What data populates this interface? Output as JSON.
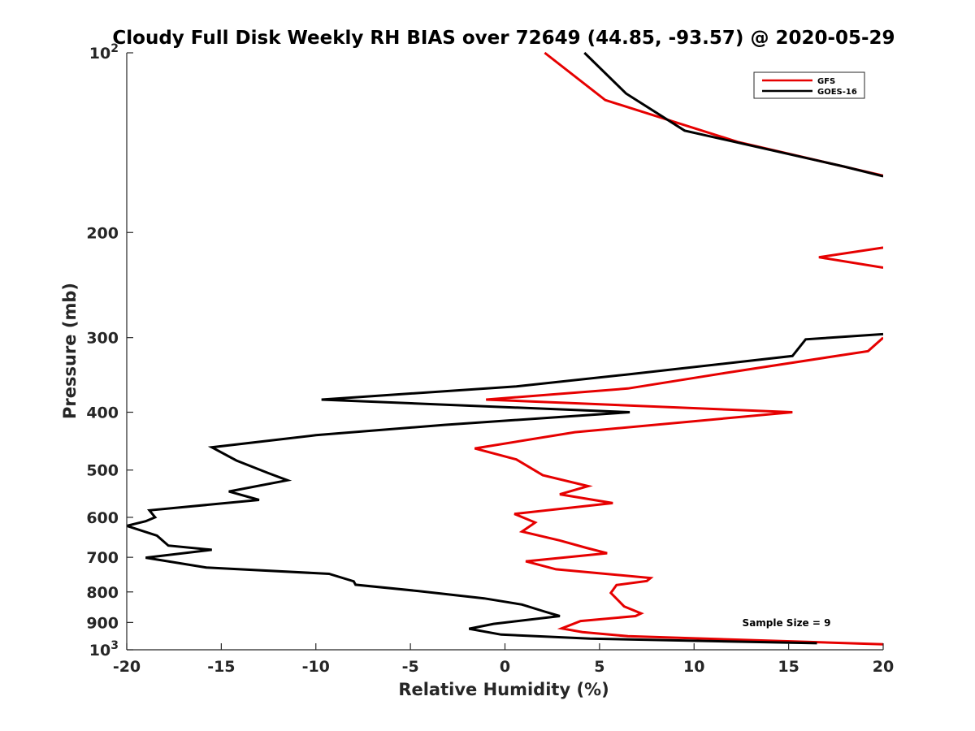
{
  "chart_data": {
    "type": "line",
    "title": "Cloudy Full Disk Weekly RH BIAS over 72649 (44.85, -93.57) @ 2020-05-29",
    "xlabel": "Relative Humidity (%)",
    "ylabel": "Pressure (mb)",
    "xlim": [
      -20,
      20
    ],
    "ylim": [
      100,
      1000
    ],
    "yscale": "log",
    "y_reversed": true,
    "x_ticks": [
      -20,
      -15,
      -10,
      -5,
      0,
      5,
      10,
      15,
      20
    ],
    "x_tick_labels": [
      "-20",
      "-15",
      "-10",
      "-5",
      "0",
      "5",
      "10",
      "15",
      "20"
    ],
    "y_ticks": [
      100,
      200,
      300,
      400,
      500,
      600,
      700,
      800,
      900,
      1000
    ],
    "y_tick_labels": [
      {
        "base": "10",
        "sup": "2"
      },
      {
        "base": "200",
        "sup": ""
      },
      {
        "base": "300",
        "sup": ""
      },
      {
        "base": "400",
        "sup": ""
      },
      {
        "base": "500",
        "sup": ""
      },
      {
        "base": "600",
        "sup": ""
      },
      {
        "base": "700",
        "sup": ""
      },
      {
        "base": "800",
        "sup": ""
      },
      {
        "base": "900",
        "sup": ""
      },
      {
        "base": "10",
        "sup": "3"
      }
    ],
    "grid": false,
    "legend_position": "top-right",
    "annotation": "Sample Size = 9",
    "series": [
      {
        "name": "GFS",
        "color": "#e60000",
        "points": [
          [
            2.1,
            100
          ],
          [
            5.3,
            120
          ],
          [
            12.3,
            141
          ],
          [
            20.5,
            162
          ],
          [
            null,
            null
          ],
          [
            20.0,
            212
          ],
          [
            16.6,
            220
          ],
          [
            20.0,
            229
          ],
          [
            null,
            null
          ],
          [
            20.0,
            300
          ],
          [
            19.2,
            316
          ],
          [
            11.6,
            344
          ],
          [
            6.5,
            365
          ],
          [
            -1.0,
            381
          ],
          [
            15.2,
            400
          ],
          [
            3.7,
            432
          ],
          [
            -1.6,
            460
          ],
          [
            0.6,
            480
          ],
          [
            2.0,
            510
          ],
          [
            4.4,
            532
          ],
          [
            2.9,
            549
          ],
          [
            5.7,
            568
          ],
          [
            0.5,
            592
          ],
          [
            1.6,
            612
          ],
          [
            0.9,
            634
          ],
          [
            2.9,
            656
          ],
          [
            4.3,
            675
          ],
          [
            5.4,
            689
          ],
          [
            1.1,
            711
          ],
          [
            2.7,
            733
          ],
          [
            7.7,
            758
          ],
          [
            7.5,
            767
          ],
          [
            5.9,
            779
          ],
          [
            5.6,
            803
          ],
          [
            6.0,
            827
          ],
          [
            6.3,
            846
          ],
          [
            7.2,
            869
          ],
          [
            6.9,
            878
          ],
          [
            4.0,
            895
          ],
          [
            3.0,
            921
          ],
          [
            4.1,
            934
          ],
          [
            6.5,
            949
          ],
          [
            20.0,
            979
          ]
        ]
      },
      {
        "name": "GOES-16",
        "color": "#000000",
        "points": [
          [
            4.2,
            100
          ],
          [
            6.4,
            117
          ],
          [
            9.5,
            135
          ],
          [
            17.9,
            155
          ],
          [
            20.0,
            161
          ],
          [
            null,
            null
          ],
          [
            20.0,
            296
          ],
          [
            15.9,
            302
          ],
          [
            15.2,
            322
          ],
          [
            6.4,
            346
          ],
          [
            0.6,
            362
          ],
          [
            -9.7,
            381
          ],
          [
            6.6,
            400
          ],
          [
            -3.2,
            420
          ],
          [
            -10.0,
            437
          ],
          [
            -15.5,
            458
          ],
          [
            -14.2,
            482
          ],
          [
            -12.5,
            506
          ],
          [
            -11.5,
            520
          ],
          [
            -14.6,
            543
          ],
          [
            -13.0,
            561
          ],
          [
            -18.8,
            584
          ],
          [
            -18.5,
            600
          ],
          [
            -19.0,
            609
          ],
          [
            -20.0,
            620
          ],
          [
            -18.4,
            644
          ],
          [
            -17.8,
            669
          ],
          [
            -15.5,
            680
          ],
          [
            -19.0,
            701
          ],
          [
            -15.8,
            728
          ],
          [
            -9.3,
            746
          ],
          [
            -8.0,
            768
          ],
          [
            -7.9,
            778
          ],
          [
            -4.6,
            797
          ],
          [
            -1.1,
            820
          ],
          [
            0.9,
            840
          ],
          [
            2.1,
            863
          ],
          [
            2.9,
            878
          ],
          [
            -0.6,
            905
          ],
          [
            -1.9,
            922
          ],
          [
            -0.2,
            943
          ],
          [
            4.5,
            958
          ],
          [
            16.5,
            975
          ]
        ]
      }
    ]
  }
}
